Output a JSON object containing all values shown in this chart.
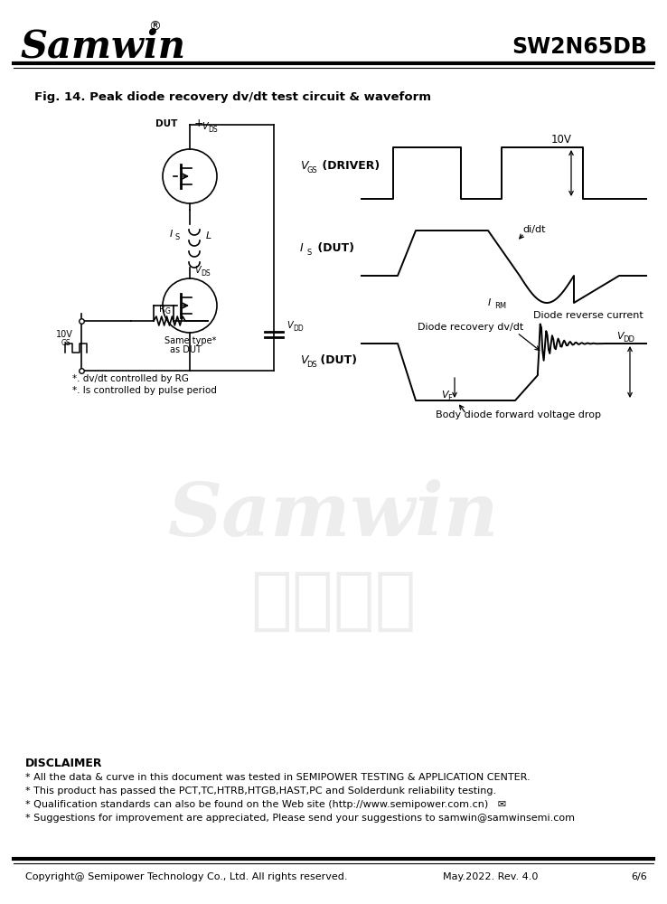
{
  "title_company": "Samwin",
  "title_part": "SW2N65DB",
  "fig_title": "Fig. 14. Peak diode recovery dv/dt test circuit & waveform",
  "disclaimer_title": "DISCLAIMER",
  "disclaimer_lines": [
    "* All the data & curve in this document was tested in SEMIPOWER TESTING & APPLICATION CENTER.",
    "* This product has passed the PCT,TC,HTRB,HTGB,HAST,PC and Solderdunk reliability testing.",
    "* Qualification standards can also be found on the Web site (http://www.semipower.com.cn)   ✉",
    "* Suggestions for improvement are appreciated, Please send your suggestions to samwin@samwinsemi.com"
  ],
  "disclaimer_lines_bold": [
    "",
    "",
    "http://www.semipower.com.cn",
    "samwin@samwinsemi.com"
  ],
  "footer_left": "Copyright@ Semipower Technology Co., Ltd. All rights reserved.",
  "footer_mid": "May.2022. Rev. 4.0",
  "footer_right": "6/6",
  "watermark1": "Samwin",
  "watermark2": "内部保密",
  "bg_color": "#ffffff",
  "text_color": "#000000"
}
